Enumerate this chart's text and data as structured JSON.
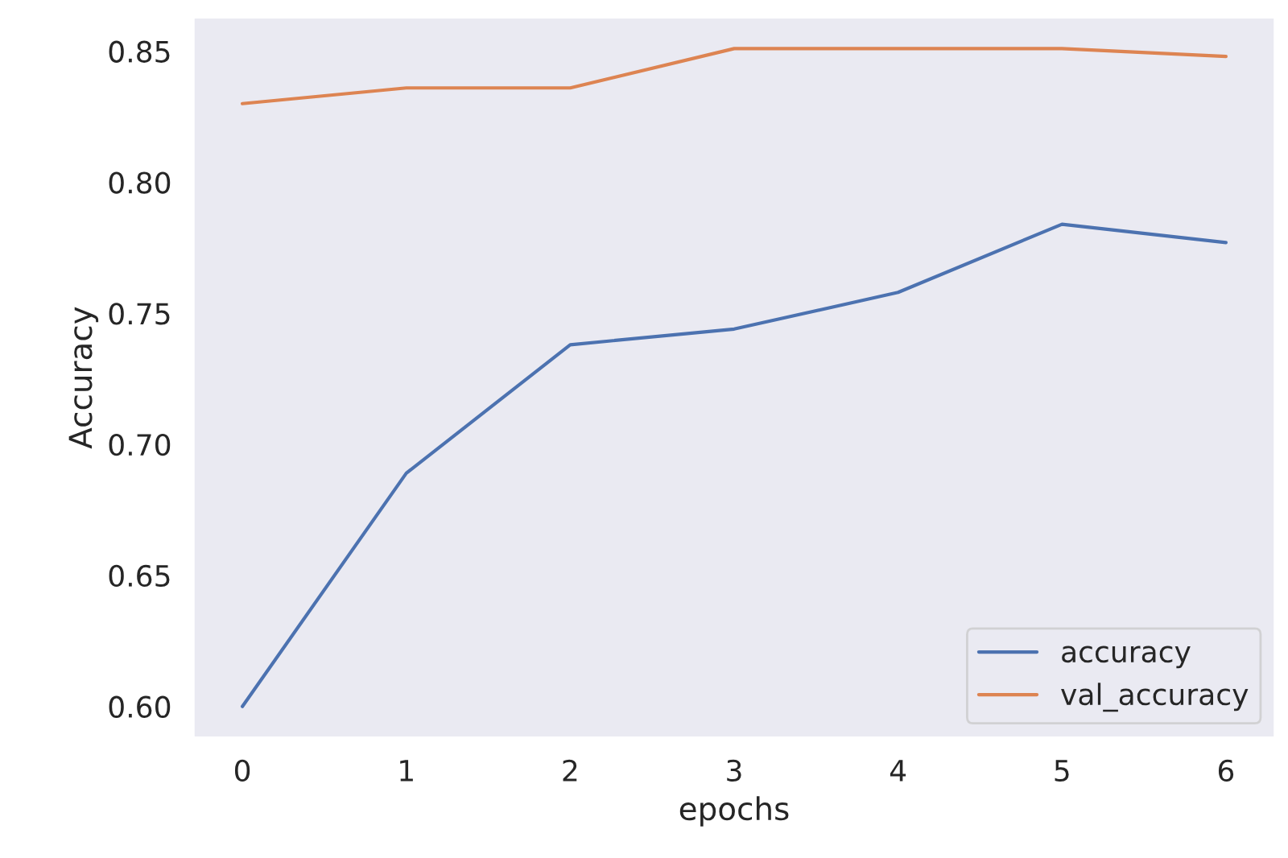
{
  "chart_data": {
    "type": "line",
    "xlabel": "epochs",
    "ylabel": "Accuracy",
    "x": [
      0,
      1,
      2,
      3,
      4,
      5,
      6
    ],
    "series": [
      {
        "name": "accuracy",
        "color": "#4c72b0",
        "values": [
          0.6,
          0.689,
          0.738,
          0.744,
          0.758,
          0.784,
          0.777
        ]
      },
      {
        "name": "val_accuracy",
        "color": "#dd8452",
        "values": [
          0.83,
          0.836,
          0.836,
          0.851,
          0.851,
          0.851,
          0.848
        ]
      }
    ],
    "xlim": [
      -0.3,
      6.3
    ],
    "ylim": [
      0.588,
      0.863
    ],
    "xticks": [
      0,
      1,
      2,
      3,
      4,
      5,
      6
    ],
    "yticks": [
      {
        "value": 0.6,
        "label": "0.60"
      },
      0.65,
      {
        "value": 0.7,
        "label": "0.70"
      },
      0.75,
      {
        "value": 0.8,
        "label": "0.80"
      },
      0.85
    ],
    "grid": false,
    "legend": "lower right"
  }
}
